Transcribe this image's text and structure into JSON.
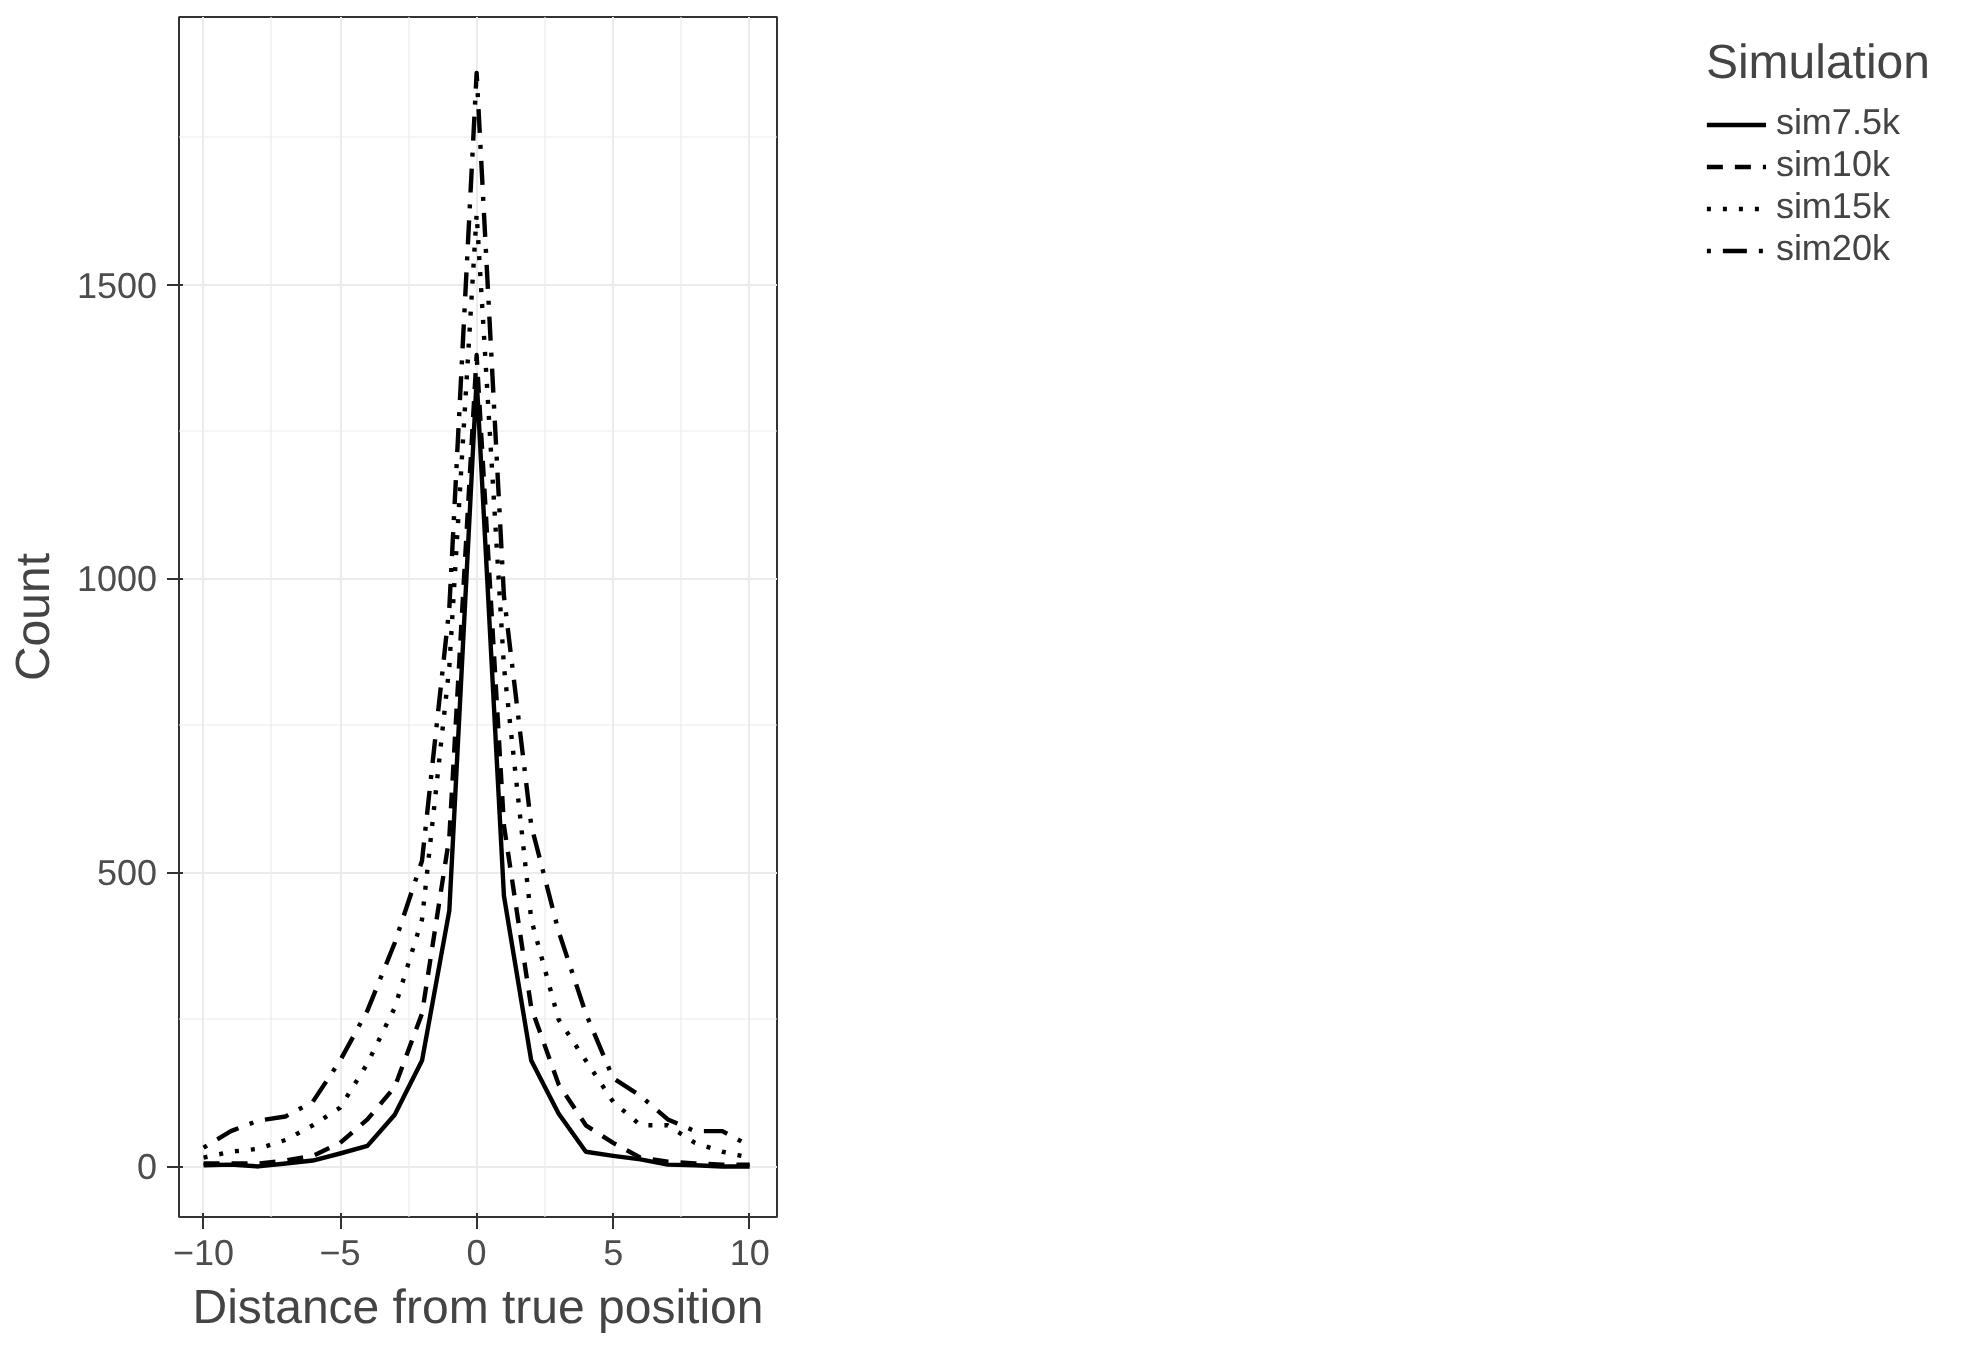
{
  "chart_data": {
    "type": "line",
    "xlabel": "Distance from true position",
    "ylabel": "Count",
    "legend_title": "Simulation",
    "legend": "right",
    "grid": true,
    "x": [
      -10,
      -9,
      -8,
      -7,
      -6,
      -5,
      -4,
      -3,
      -2,
      -1,
      0,
      1,
      2,
      3,
      4,
      5,
      6,
      7,
      8,
      9,
      10
    ],
    "xlim": [
      -10.9,
      11
    ],
    "ylim": [
      -86,
      1955
    ],
    "xticks": [
      -10,
      -5,
      0,
      5,
      10
    ],
    "yticks": [
      0,
      500,
      1000,
      1500
    ],
    "series": [
      {
        "name": "sim7.5k",
        "color": "#000000",
        "line_style": "solid",
        "values": [
          2,
          3,
          0,
          5,
          10,
          22,
          35,
          88,
          180,
          435,
          1340,
          460,
          180,
          90,
          25,
          18,
          12,
          3,
          2,
          0,
          0
        ]
      },
      {
        "name": "sim10k",
        "color": "#000000",
        "line_style": "dashed",
        "values": [
          5,
          5,
          5,
          10,
          18,
          40,
          80,
          135,
          260,
          560,
          1380,
          580,
          270,
          140,
          70,
          40,
          15,
          8,
          5,
          3,
          3
        ]
      },
      {
        "name": "sim15k",
        "color": "#000000",
        "line_style": "dotted",
        "values": [
          15,
          25,
          30,
          45,
          70,
          100,
          175,
          270,
          420,
          850,
          1620,
          850,
          420,
          250,
          180,
          110,
          70,
          70,
          40,
          25,
          15
        ]
      },
      {
        "name": "sim20k",
        "color": "#000000",
        "line_style": "dotdash",
        "values": [
          32,
          60,
          78,
          85,
          110,
          180,
          265,
          380,
          520,
          950,
          1860,
          970,
          580,
          400,
          260,
          150,
          120,
          80,
          60,
          60,
          35
        ]
      }
    ]
  }
}
